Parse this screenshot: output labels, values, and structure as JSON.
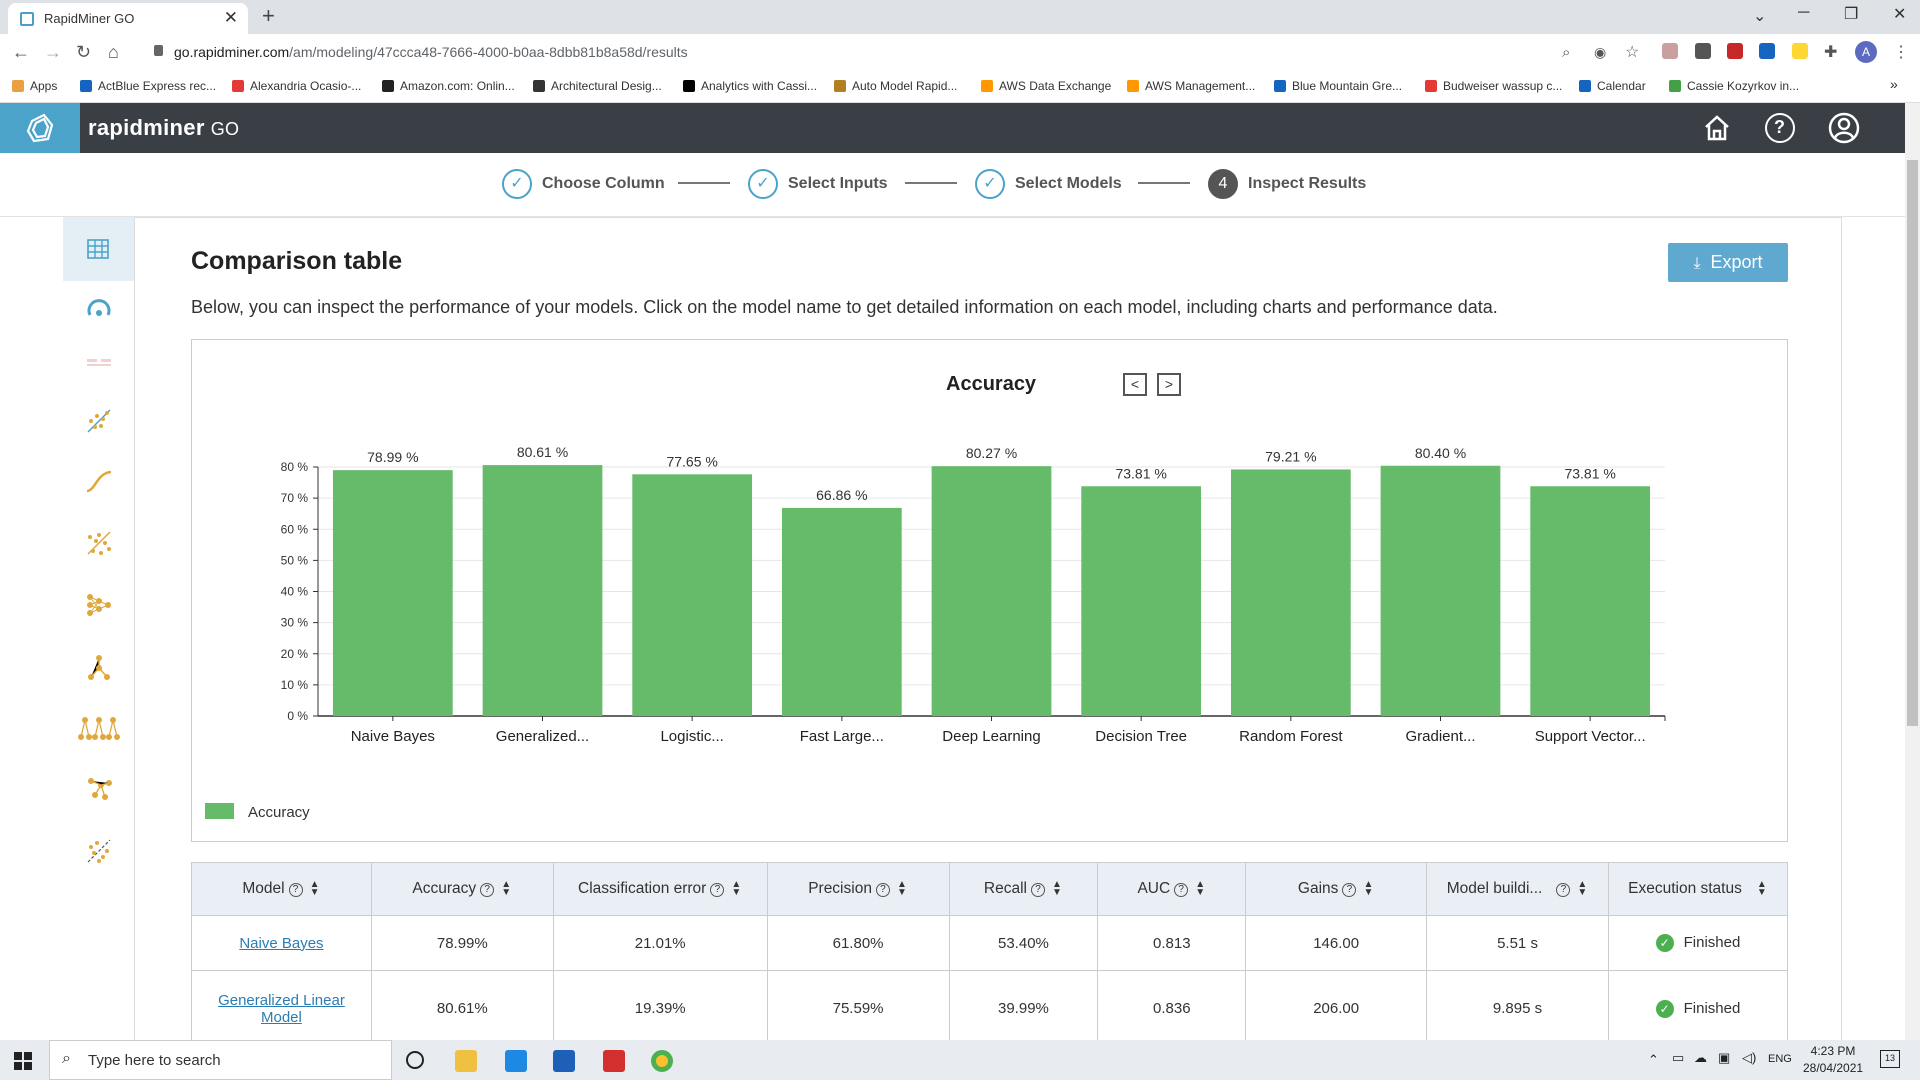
{
  "browser": {
    "tab_title": "RapidMiner GO",
    "url_domain": "go.rapidminer.com",
    "url_path": "/am/modeling/47ccca48-7666-4000-b0aa-8dbb81b8a58d/results",
    "bookmarks": [
      "Apps",
      "ActBlue Express rec...",
      "Alexandria Ocasio-...",
      "Amazon.com: Onlin...",
      "Architectural Desig...",
      "Analytics with Cassi...",
      "Auto Model Rapid...",
      "AWS Data Exchange",
      "AWS Management...",
      "Blue Mountain Gre...",
      "Budweiser wassup c...",
      "Calendar",
      "Cassie Kozyrkov in..."
    ],
    "bookmark_colors": [
      "#e53935",
      "#1565c0",
      "#e53935",
      "#222222",
      "#333333",
      "#000000",
      "#b08020",
      "#ff9800",
      "#ff9800",
      "#1565c0",
      "#e53935",
      "#1565c0",
      "#43a047"
    ],
    "avatar_letter": "A"
  },
  "app": {
    "brand_main": "rapidminer",
    "brand_sub": "GO",
    "brand_color": "#4ba3c9"
  },
  "steps": [
    {
      "label": "Choose Column",
      "state": "done"
    },
    {
      "label": "Select Inputs",
      "state": "done"
    },
    {
      "label": "Select Models",
      "state": "done"
    },
    {
      "label": "Inspect Results",
      "state": "current",
      "number": "4"
    }
  ],
  "page": {
    "title": "Comparison table",
    "description": "Below, you can inspect the performance of your models. Click on the model name to get detailed information on each model, including charts and performance data.",
    "export_label": "Export"
  },
  "chart_data": {
    "type": "bar",
    "title": "Accuracy",
    "categories": [
      "Naive Bayes",
      "Generalized...",
      "Logistic...",
      "Fast Large...",
      "Deep Learning",
      "Decision Tree",
      "Random Forest",
      "Gradient...",
      "Support Vector..."
    ],
    "values": [
      78.99,
      80.61,
      77.65,
      66.86,
      80.27,
      73.81,
      79.21,
      80.4,
      73.81
    ],
    "value_labels": [
      "78.99 %",
      "80.61 %",
      "77.65 %",
      "66.86 %",
      "80.27 %",
      "73.81 %",
      "79.21 %",
      "80.40 %",
      "73.81 %"
    ],
    "yticks": [
      "0 %",
      "10 %",
      "20 %",
      "30 %",
      "40 %",
      "50 %",
      "60 %",
      "70 %",
      "80 %"
    ],
    "ylim": [
      0,
      80
    ],
    "series": [
      {
        "name": "Accuracy",
        "color": "#66bb6a"
      }
    ],
    "legend_position": "bottom-left",
    "grid": true
  },
  "table": {
    "headers": [
      "Model",
      "Accuracy",
      "Classification error",
      "Precision",
      "Recall",
      "AUC",
      "Gains",
      "Model buildi...",
      "Execution status"
    ],
    "header_help": [
      true,
      true,
      true,
      true,
      true,
      true,
      true,
      true,
      false
    ],
    "rows": [
      {
        "model": "Naive Bayes",
        "accuracy": "78.99%",
        "class_error": "21.01%",
        "precision": "61.80%",
        "recall": "53.40%",
        "auc": "0.813",
        "gains": "146.00",
        "build": "5.51 s",
        "status": "Finished"
      },
      {
        "model": "Generalized Linear Model",
        "accuracy": "80.61%",
        "class_error": "19.39%",
        "precision": "75.59%",
        "recall": "39.99%",
        "auc": "0.836",
        "gains": "206.00",
        "build": "9.895 s",
        "status": "Finished"
      }
    ]
  },
  "taskbar": {
    "search_placeholder": "Type here to search",
    "lang": "ENG",
    "time": "4:23 PM",
    "date": "28/04/2021",
    "notif_count": "13"
  }
}
